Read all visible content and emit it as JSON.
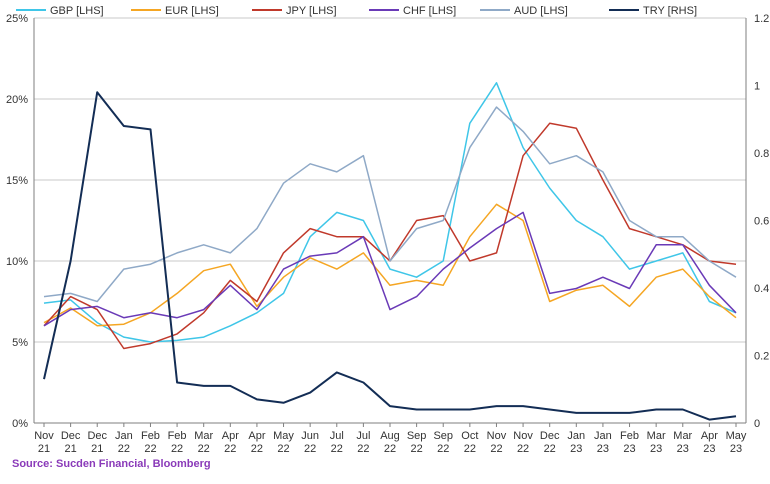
{
  "source_text": "Source: Sucden Financial, Bloomberg",
  "chart_data": {
    "type": "line",
    "title": "",
    "xlabel": "",
    "ylabel": "",
    "legend_placement": "top",
    "grid": "horizontal",
    "left_axis": {
      "ylim": [
        0,
        25
      ],
      "ticks": [
        "0%",
        "5%",
        "10%",
        "15%",
        "20%",
        "25%"
      ]
    },
    "right_axis": {
      "ylim": [
        0,
        1.2
      ],
      "ticks": [
        "0",
        "0.2",
        "0.4",
        "0.6",
        "0.8",
        "1",
        "1.2"
      ]
    },
    "x_ticks": [
      [
        "Nov",
        "21"
      ],
      [
        "Dec",
        "21"
      ],
      [
        "Dec",
        "21"
      ],
      [
        "Jan",
        "22"
      ],
      [
        "Feb",
        "22"
      ],
      [
        "Feb",
        "22"
      ],
      [
        "Mar",
        "22"
      ],
      [
        "Apr",
        "22"
      ],
      [
        "Apr",
        "22"
      ],
      [
        "May",
        "22"
      ],
      [
        "Jun",
        "22"
      ],
      [
        "Jul",
        "22"
      ],
      [
        "Jul",
        "22"
      ],
      [
        "Aug",
        "22"
      ],
      [
        "Sep",
        "22"
      ],
      [
        "Sep",
        "22"
      ],
      [
        "Oct",
        "22"
      ],
      [
        "Nov",
        "22"
      ],
      [
        "Nov",
        "22"
      ],
      [
        "Dec",
        "22"
      ],
      [
        "Jan",
        "23"
      ],
      [
        "Jan",
        "23"
      ],
      [
        "Feb",
        "23"
      ],
      [
        "Mar",
        "23"
      ],
      [
        "Mar",
        "23"
      ],
      [
        "Apr",
        "23"
      ],
      [
        "May",
        "23"
      ]
    ],
    "series": [
      {
        "name": "GBP [LHS]",
        "axis": "left",
        "color": "#3fc6e8",
        "values": [
          7.4,
          7.6,
          6.2,
          5.3,
          5.0,
          5.1,
          5.3,
          6.0,
          6.8,
          8.0,
          11.5,
          13.0,
          12.5,
          9.5,
          9.0,
          10.0,
          18.5,
          21.0,
          17.0,
          14.5,
          12.5,
          11.5,
          9.5,
          10.0,
          10.5,
          7.5,
          6.8
        ]
      },
      {
        "name": "EUR [LHS]",
        "axis": "left",
        "color": "#f5a623",
        "values": [
          6.2,
          7.1,
          6.0,
          6.1,
          6.8,
          8.0,
          9.4,
          9.8,
          7.2,
          9.0,
          10.2,
          9.5,
          10.5,
          8.5,
          8.8,
          8.5,
          11.5,
          13.5,
          12.5,
          7.5,
          8.2,
          8.5,
          7.2,
          9.0,
          9.5,
          7.8,
          6.5
        ]
      },
      {
        "name": "JPY [LHS]",
        "axis": "left",
        "color": "#c0392b",
        "values": [
          6.0,
          7.8,
          7.0,
          4.6,
          4.9,
          5.5,
          6.8,
          8.8,
          7.5,
          10.5,
          12.0,
          11.5,
          11.5,
          10.0,
          12.5,
          12.8,
          10.0,
          10.5,
          16.5,
          18.5,
          18.2,
          15.0,
          12.0,
          11.5,
          11.0,
          10.0,
          9.8
        ]
      },
      {
        "name": "CHF [LHS]",
        "axis": "left",
        "color": "#6a3ab7",
        "values": [
          6.0,
          7.0,
          7.2,
          6.5,
          6.8,
          6.5,
          7.0,
          8.5,
          7.0,
          9.5,
          10.3,
          10.5,
          11.5,
          7.0,
          7.8,
          9.5,
          10.8,
          12.0,
          13.0,
          8.0,
          8.3,
          9.0,
          8.3,
          11.0,
          11.0,
          8.5,
          6.8
        ]
      },
      {
        "name": "AUD [LHS]",
        "axis": "left",
        "color": "#8fa9c7",
        "values": [
          7.8,
          8.0,
          7.5,
          9.5,
          9.8,
          10.5,
          11.0,
          10.5,
          12.0,
          14.8,
          16.0,
          15.5,
          16.5,
          10.0,
          12.0,
          12.5,
          17.0,
          19.5,
          18.0,
          16.0,
          16.5,
          15.5,
          12.5,
          11.5,
          11.5,
          10.0,
          9.0
        ]
      },
      {
        "name": "TRY [RHS]",
        "axis": "right",
        "color": "#132d55",
        "values": [
          0.13,
          0.48,
          0.98,
          0.88,
          0.87,
          0.12,
          0.11,
          0.11,
          0.07,
          0.06,
          0.09,
          0.15,
          0.12,
          0.05,
          0.04,
          0.04,
          0.04,
          0.05,
          0.05,
          0.04,
          0.03,
          0.03,
          0.03,
          0.04,
          0.04,
          0.01,
          0.02
        ]
      }
    ]
  }
}
